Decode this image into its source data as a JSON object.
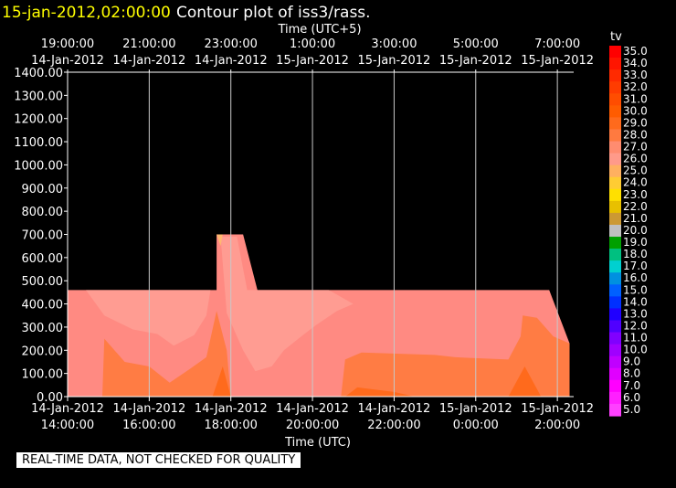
{
  "header": {
    "timestamp": "15-jan-2012,02:00:00",
    "title": "Contour plot of iss3/rass."
  },
  "colors": {
    "background": "#000000",
    "timestamp": "#ffff00",
    "text": "#ffffff",
    "grid": "#c8c8c8"
  },
  "banner": "REAL-TIME DATA, NOT CHECKED FOR QUALITY",
  "chart_data": {
    "type": "contour",
    "title": "Contour plot of iss3/rass.",
    "x_top_label": "Time (UTC+5)",
    "xlabel": "Time (UTC)",
    "ylabel": "",
    "ylim": [
      0,
      1400
    ],
    "xlim_hours_utc": [
      14,
      26.4
    ],
    "grid": true,
    "y_ticks": [
      "0.00",
      "100.00",
      "200.00",
      "300.00",
      "400.00",
      "500.00",
      "600.00",
      "700.00",
      "800.00",
      "900.00",
      "1000.00",
      "1100.00",
      "1200.00",
      "1300.00",
      "1400.00"
    ],
    "x_ticks_bottom": [
      {
        "date": "14-Jan-2012",
        "time": "14:00:00"
      },
      {
        "date": "14-Jan-2012",
        "time": "16:00:00"
      },
      {
        "date": "14-Jan-2012",
        "time": "18:00:00"
      },
      {
        "date": "14-Jan-2012",
        "time": "20:00:00"
      },
      {
        "date": "14-Jan-2012",
        "time": "22:00:00"
      },
      {
        "date": "15-Jan-2012",
        "time": "0:00:00"
      },
      {
        "date": "15-Jan-2012",
        "time": "2:00:00"
      }
    ],
    "x_ticks_top": [
      {
        "time": "19:00:00",
        "date": "14-Jan-2012"
      },
      {
        "time": "21:00:00",
        "date": "14-Jan-2012"
      },
      {
        "time": "23:00:00",
        "date": "14-Jan-2012"
      },
      {
        "time": "1:00:00",
        "date": "15-Jan-2012"
      },
      {
        "time": "3:00:00",
        "date": "15-Jan-2012"
      },
      {
        "time": "5:00:00",
        "date": "15-Jan-2012"
      },
      {
        "time": "7:00:00",
        "date": "15-Jan-2012"
      }
    ],
    "colorbar": {
      "label": "tv",
      "levels": [
        {
          "value": "35.0",
          "color": "#ff0000"
        },
        {
          "value": "34.0",
          "color": "#ff1500"
        },
        {
          "value": "33.0",
          "color": "#ff2a00"
        },
        {
          "value": "32.0",
          "color": "#ff3c00"
        },
        {
          "value": "31.0",
          "color": "#ff4d00"
        },
        {
          "value": "30.0",
          "color": "#ff5c00"
        },
        {
          "value": "29.0",
          "color": "#ff6a1c"
        },
        {
          "value": "28.0",
          "color": "#ff7a40"
        },
        {
          "value": "27.0",
          "color": "#ff8c70"
        },
        {
          "value": "26.0",
          "color": "#ff9a8a"
        },
        {
          "value": "25.0",
          "color": "#ffb060"
        },
        {
          "value": "24.0",
          "color": "#ffcc33"
        },
        {
          "value": "23.0",
          "color": "#ffe000"
        },
        {
          "value": "22.0",
          "color": "#e8c000"
        },
        {
          "value": "21.0",
          "color": "#cc9933"
        },
        {
          "value": "20.0",
          "color": "#c0c0c0"
        },
        {
          "value": "19.0",
          "color": "#00a000"
        },
        {
          "value": "18.0",
          "color": "#00c080"
        },
        {
          "value": "17.0",
          "color": "#00d0d0"
        },
        {
          "value": "16.0",
          "color": "#0090e0"
        },
        {
          "value": "15.0",
          "color": "#0060ff"
        },
        {
          "value": "14.0",
          "color": "#0030ff"
        },
        {
          "value": "13.0",
          "color": "#2000ff"
        },
        {
          "value": "12.0",
          "color": "#5000ff"
        },
        {
          "value": "11.0",
          "color": "#8000ff"
        },
        {
          "value": "10.0",
          "color": "#a000ff"
        },
        {
          "value": "9.0",
          "color": "#c000ff"
        },
        {
          "value": "8.0",
          "color": "#e000ff"
        },
        {
          "value": "7.0",
          "color": "#ff00ff"
        },
        {
          "value": "6.0",
          "color": "#ff20ff"
        },
        {
          "value": "5.0",
          "color": "#ff40ff"
        }
      ]
    },
    "regions": [
      {
        "tv": 27,
        "color": "#ff8a82",
        "points": [
          [
            14.0,
            0
          ],
          [
            14.0,
            460
          ],
          [
            17.65,
            460
          ],
          [
            17.65,
            700
          ],
          [
            18.3,
            700
          ],
          [
            18.65,
            460
          ],
          [
            25.8,
            460
          ],
          [
            26.3,
            230
          ],
          [
            26.3,
            0
          ]
        ]
      },
      {
        "tv": 26,
        "color": "#ff9c92",
        "points": [
          [
            14.45,
            460
          ],
          [
            14.9,
            350
          ],
          [
            15.6,
            290
          ],
          [
            16.2,
            270
          ],
          [
            16.6,
            220
          ],
          [
            17.1,
            265
          ],
          [
            17.4,
            350
          ],
          [
            17.5,
            460
          ]
        ]
      },
      {
        "tv": 26,
        "color": "#ff9c92",
        "points": [
          [
            17.65,
            690
          ],
          [
            18.0,
            690
          ],
          [
            18.15,
            690
          ],
          [
            18.4,
            460
          ],
          [
            19.0,
            460
          ],
          [
            20.4,
            460
          ],
          [
            21.0,
            400
          ],
          [
            20.6,
            370
          ],
          [
            20.1,
            310
          ],
          [
            19.8,
            270
          ],
          [
            19.3,
            200
          ],
          [
            19.0,
            130
          ],
          [
            18.6,
            110
          ],
          [
            18.3,
            200
          ],
          [
            17.9,
            360
          ],
          [
            17.75,
            690
          ]
        ]
      },
      {
        "tv": 28,
        "color": "#ff7c44",
        "points": [
          [
            14.85,
            0
          ],
          [
            14.9,
            250
          ],
          [
            15.4,
            150
          ],
          [
            16.0,
            130
          ],
          [
            16.5,
            60
          ],
          [
            17.0,
            120
          ],
          [
            17.4,
            170
          ],
          [
            17.65,
            370
          ],
          [
            17.9,
            200
          ],
          [
            18.0,
            0
          ]
        ]
      },
      {
        "tv": 28,
        "color": "#ff7c44",
        "points": [
          [
            20.7,
            0
          ],
          [
            20.8,
            160
          ],
          [
            21.2,
            190
          ],
          [
            23.0,
            180
          ],
          [
            23.5,
            170
          ],
          [
            24.8,
            160
          ],
          [
            25.1,
            260
          ],
          [
            25.15,
            350
          ],
          [
            25.5,
            340
          ],
          [
            25.9,
            260
          ],
          [
            26.3,
            230
          ],
          [
            26.3,
            0
          ]
        ]
      },
      {
        "tv": 29,
        "color": "#ff6a1c",
        "points": [
          [
            17.55,
            0
          ],
          [
            17.8,
            130
          ],
          [
            18.0,
            0
          ]
        ]
      },
      {
        "tv": 29,
        "color": "#ff6a1c",
        "points": [
          [
            20.8,
            0
          ],
          [
            21.1,
            40
          ],
          [
            22.0,
            20
          ],
          [
            22.5,
            0
          ]
        ]
      },
      {
        "tv": 29,
        "color": "#ff6a1c",
        "points": [
          [
            24.8,
            0
          ],
          [
            25.2,
            130
          ],
          [
            25.6,
            0
          ]
        ]
      },
      {
        "tv": 25,
        "color": "#ffb870",
        "points": [
          [
            17.65,
            700
          ],
          [
            17.8,
            700
          ],
          [
            17.75,
            650
          ]
        ]
      }
    ]
  }
}
